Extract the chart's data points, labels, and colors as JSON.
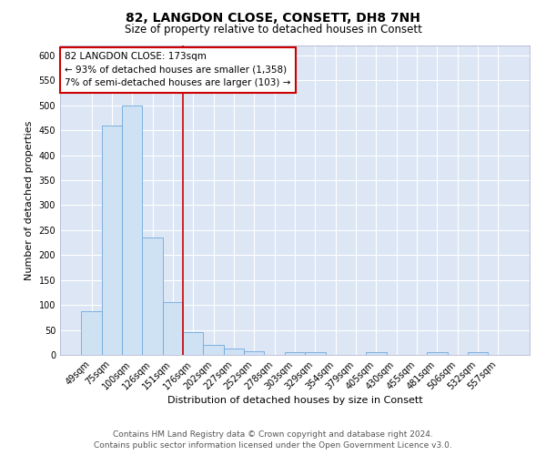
{
  "title": "82, LANGDON CLOSE, CONSETT, DH8 7NH",
  "subtitle": "Size of property relative to detached houses in Consett",
  "xlabel": "Distribution of detached houses by size in Consett",
  "ylabel": "Number of detached properties",
  "categories": [
    "49sqm",
    "75sqm",
    "100sqm",
    "126sqm",
    "151sqm",
    "176sqm",
    "202sqm",
    "227sqm",
    "252sqm",
    "278sqm",
    "303sqm",
    "329sqm",
    "354sqm",
    "379sqm",
    "405sqm",
    "430sqm",
    "455sqm",
    "481sqm",
    "506sqm",
    "532sqm",
    "557sqm"
  ],
  "values": [
    88,
    460,
    500,
    235,
    105,
    45,
    20,
    13,
    8,
    0,
    5,
    5,
    0,
    0,
    5,
    0,
    0,
    5,
    0,
    5,
    0
  ],
  "bar_color": "#cfe2f3",
  "bar_edge_color": "#6fa8dc",
  "vline_color": "#cc0000",
  "annotation_text": "82 LANGDON CLOSE: 173sqm\n← 93% of detached houses are smaller (1,358)\n7% of semi-detached houses are larger (103) →",
  "annotation_box_color": "white",
  "annotation_box_edge": "#cc0000",
  "ylim": [
    0,
    620
  ],
  "yticks": [
    0,
    50,
    100,
    150,
    200,
    250,
    300,
    350,
    400,
    450,
    500,
    550,
    600
  ],
  "background_color": "#dce6f5",
  "footer_line1": "Contains HM Land Registry data © Crown copyright and database right 2024.",
  "footer_line2": "Contains public sector information licensed under the Open Government Licence v3.0.",
  "title_fontsize": 10,
  "subtitle_fontsize": 8.5,
  "xlabel_fontsize": 8,
  "ylabel_fontsize": 8,
  "tick_fontsize": 7,
  "annotation_fontsize": 7.5,
  "footer_fontsize": 6.5
}
